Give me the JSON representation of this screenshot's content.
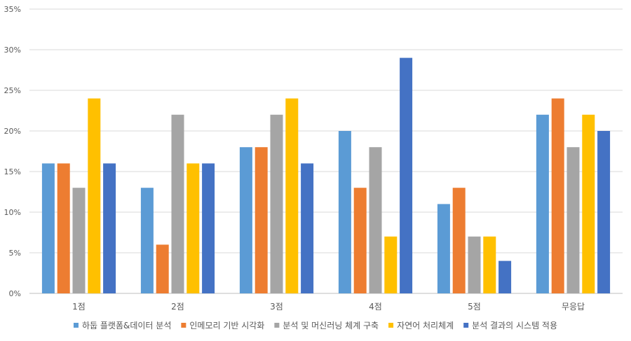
{
  "chart_data": {
    "type": "bar",
    "title": "",
    "xlabel": "",
    "ylabel": "",
    "categories": [
      "1점",
      "2점",
      "3점",
      "4점",
      "5점",
      "무응답"
    ],
    "ylim": [
      0,
      35
    ],
    "yticks": [
      0,
      5,
      10,
      15,
      20,
      25,
      30,
      35
    ],
    "ytick_labels": [
      "0%",
      "5%",
      "10%",
      "15%",
      "20%",
      "25%",
      "30%",
      "35%"
    ],
    "grid": true,
    "legend_position": "bottom",
    "series": [
      {
        "name": "하둡 플랫폼&데이터 분석",
        "color": "#5B9BD5",
        "values": [
          16,
          13,
          18,
          20,
          11,
          22
        ]
      },
      {
        "name": "인메모리 기반 시각화",
        "color": "#ED7D31",
        "values": [
          16,
          6,
          18,
          13,
          13,
          24
        ]
      },
      {
        "name": "분석 및 머신러닝 체계 구축",
        "color": "#A5A5A5",
        "values": [
          13,
          22,
          22,
          18,
          7,
          18
        ]
      },
      {
        "name": "자연어 처리체계",
        "color": "#FFC000",
        "values": [
          24,
          16,
          24,
          7,
          7,
          22
        ]
      },
      {
        "name": "분석 결과의 시스템 적용",
        "color": "#4472C4",
        "values": [
          16,
          16,
          16,
          29,
          4,
          20
        ]
      }
    ]
  }
}
